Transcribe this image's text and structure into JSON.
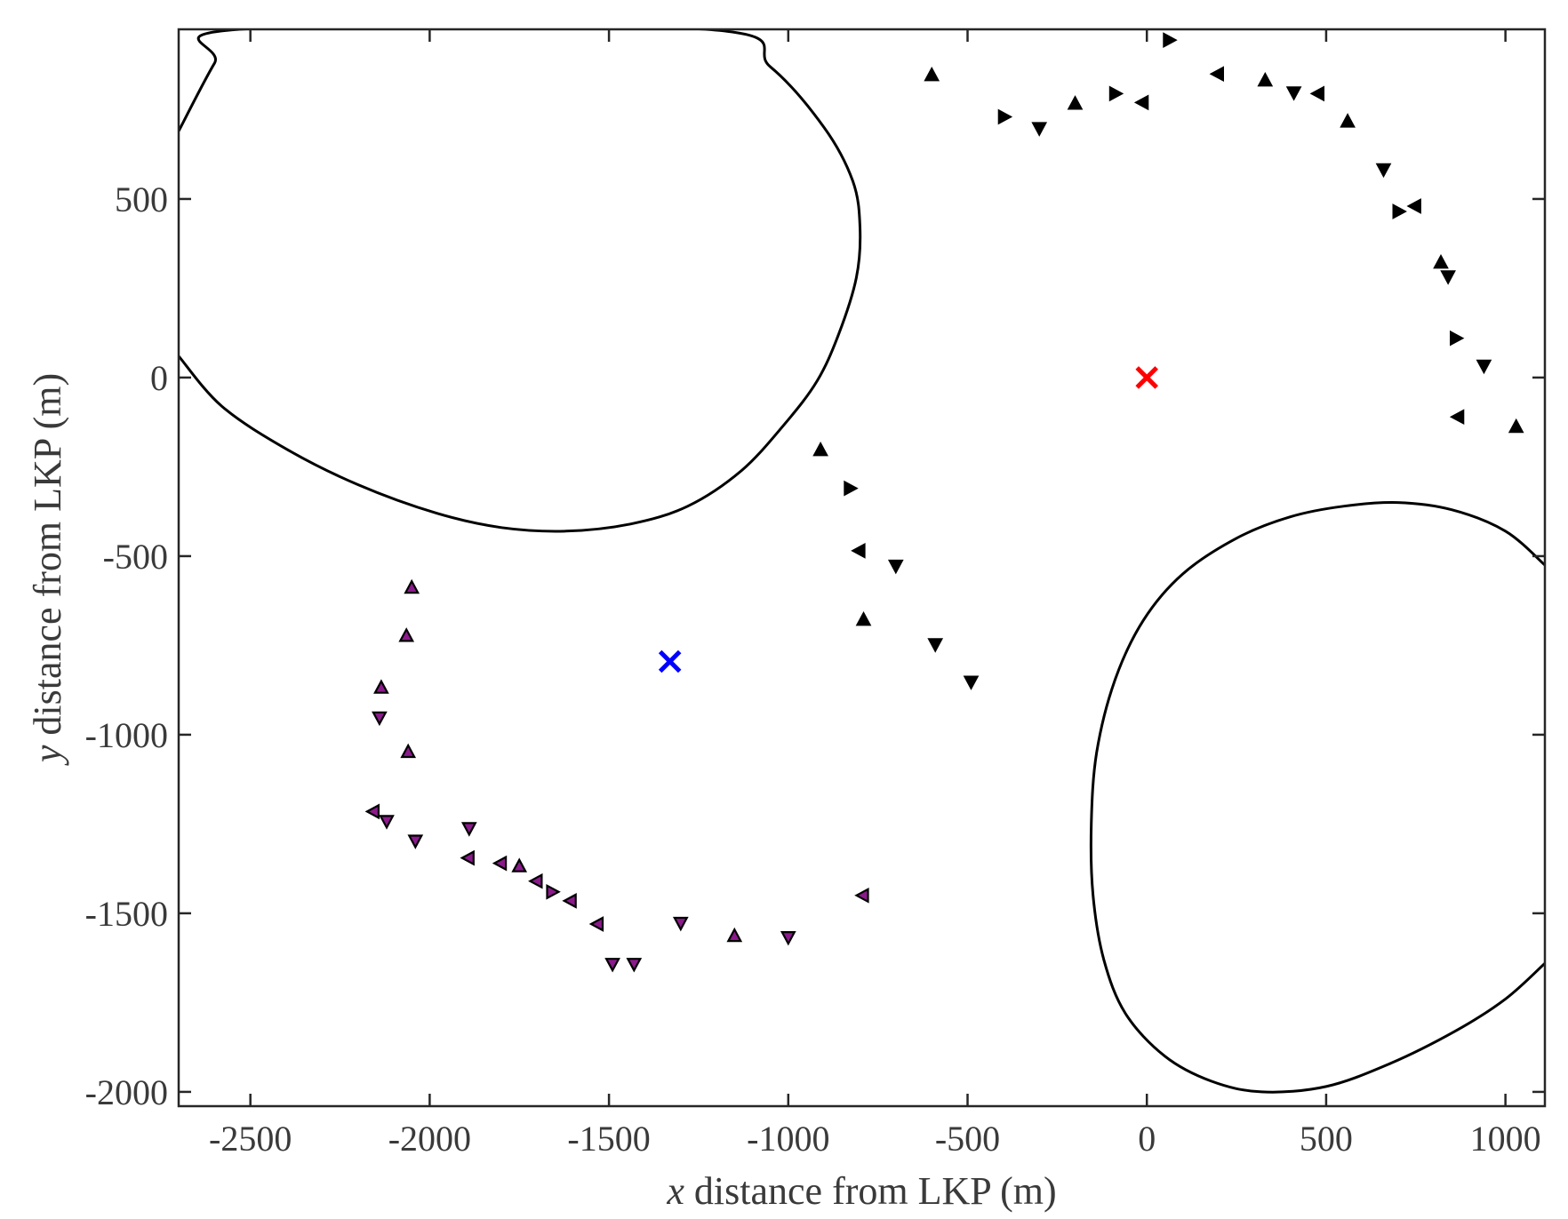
{
  "chart_data": {
    "type": "scatter",
    "xlabel_var": "x",
    "xlabel_rest": " distance from LKP (m)",
    "ylabel_var": "y",
    "ylabel_rest": " distance from LKP (m)",
    "xlim": [
      -2700,
      1110
    ],
    "ylim": [
      -2040,
      975
    ],
    "xticks": [
      -2500,
      -2000,
      -1500,
      -1000,
      -500,
      0,
      500,
      1000
    ],
    "yticks": [
      -2000,
      -1500,
      -1000,
      -500,
      0,
      500
    ],
    "grid": false,
    "colors": {
      "curve": "#000000",
      "marker_stroke": "#000000",
      "marker_fill_group2": "#8b1a8b",
      "red_cross": "#ff0000",
      "blue_cross": "#0000ff"
    },
    "curves": [
      {
        "points": [
          [
            -2700,
            690
          ],
          [
            -2600,
            880
          ],
          [
            -2530,
            975
          ],
          [
            -1230,
            975
          ],
          [
            -1050,
            870
          ],
          [
            -900,
            700
          ],
          [
            -820,
            550
          ],
          [
            -800,
            420
          ],
          [
            -810,
            280
          ],
          [
            -860,
            120
          ],
          [
            -920,
            -10
          ],
          [
            -1010,
            -130
          ],
          [
            -1130,
            -260
          ],
          [
            -1280,
            -360
          ],
          [
            -1440,
            -410
          ],
          [
            -1620,
            -430
          ],
          [
            -1800,
            -420
          ],
          [
            -1980,
            -380
          ],
          [
            -2200,
            -300
          ],
          [
            -2400,
            -200
          ],
          [
            -2580,
            -80
          ],
          [
            -2700,
            60
          ]
        ]
      },
      {
        "points": [
          [
            1110,
            -525
          ],
          [
            1000,
            -430
          ],
          [
            850,
            -370
          ],
          [
            700,
            -350
          ],
          [
            550,
            -360
          ],
          [
            400,
            -390
          ],
          [
            250,
            -450
          ],
          [
            100,
            -550
          ],
          [
            -10,
            -680
          ],
          [
            -90,
            -850
          ],
          [
            -140,
            -1050
          ],
          [
            -155,
            -1250
          ],
          [
            -150,
            -1450
          ],
          [
            -120,
            -1630
          ],
          [
            -60,
            -1780
          ],
          [
            50,
            -1900
          ],
          [
            180,
            -1970
          ],
          [
            320,
            -2000
          ],
          [
            500,
            -1985
          ],
          [
            680,
            -1920
          ],
          [
            860,
            -1830
          ],
          [
            1000,
            -1740
          ],
          [
            1110,
            -1640
          ]
        ]
      }
    ],
    "series": [
      {
        "marker": "triangle",
        "points": [
          [
            -600,
            845,
            0
          ],
          [
            -400,
            730,
            90
          ],
          [
            -300,
            700,
            180
          ],
          [
            -200,
            765,
            0
          ],
          [
            -90,
            795,
            90
          ],
          [
            -10,
            770,
            270
          ],
          [
            60,
            945,
            90
          ],
          [
            200,
            850,
            270
          ],
          [
            330,
            830,
            0
          ],
          [
            410,
            800,
            180
          ],
          [
            480,
            795,
            270
          ],
          [
            560,
            715,
            0
          ],
          [
            660,
            585,
            180
          ],
          [
            700,
            465,
            90
          ],
          [
            750,
            480,
            270
          ],
          [
            820,
            320,
            0
          ],
          [
            840,
            285,
            180
          ],
          [
            860,
            110,
            90
          ],
          [
            940,
            35,
            180
          ],
          [
            870,
            -110,
            270
          ],
          [
            1030,
            -140,
            0
          ]
        ]
      },
      {
        "marker": "triangle",
        "points": [
          [
            -910,
            -205,
            0
          ],
          [
            -830,
            -310,
            90
          ],
          [
            -800,
            -485,
            270
          ],
          [
            -700,
            -525,
            180
          ],
          [
            -790,
            -680,
            0
          ],
          [
            -590,
            -745,
            180
          ],
          [
            -490,
            -850,
            180
          ]
        ]
      },
      {
        "marker": "triangle",
        "fill": "purple",
        "points": [
          [
            -2050,
            -590,
            0
          ],
          [
            -2065,
            -725,
            0
          ],
          [
            -2135,
            -870,
            0
          ],
          [
            -2140,
            -950,
            180
          ],
          [
            -2060,
            -1050,
            0
          ],
          [
            -2155,
            -1215,
            270
          ],
          [
            -2120,
            -1240,
            180
          ],
          [
            -2040,
            -1295,
            180
          ],
          [
            -1890,
            -1260,
            180
          ],
          [
            -1890,
            -1345,
            270
          ],
          [
            -1800,
            -1360,
            270
          ],
          [
            -1750,
            -1370,
            0
          ],
          [
            -1700,
            -1410,
            270
          ],
          [
            -1660,
            -1440,
            90
          ],
          [
            -1605,
            -1465,
            270
          ],
          [
            -1530,
            -1530,
            270
          ],
          [
            -1490,
            -1640,
            180
          ],
          [
            -1430,
            -1640,
            180
          ],
          [
            -1300,
            -1525,
            180
          ],
          [
            -1150,
            -1565,
            0
          ],
          [
            -1000,
            -1565,
            180
          ],
          [
            -790,
            -1450,
            270
          ]
        ]
      }
    ],
    "crosses": [
      {
        "color": "red",
        "x": 0,
        "y": 0
      },
      {
        "color": "blue",
        "x": -1330,
        "y": -795
      }
    ]
  }
}
